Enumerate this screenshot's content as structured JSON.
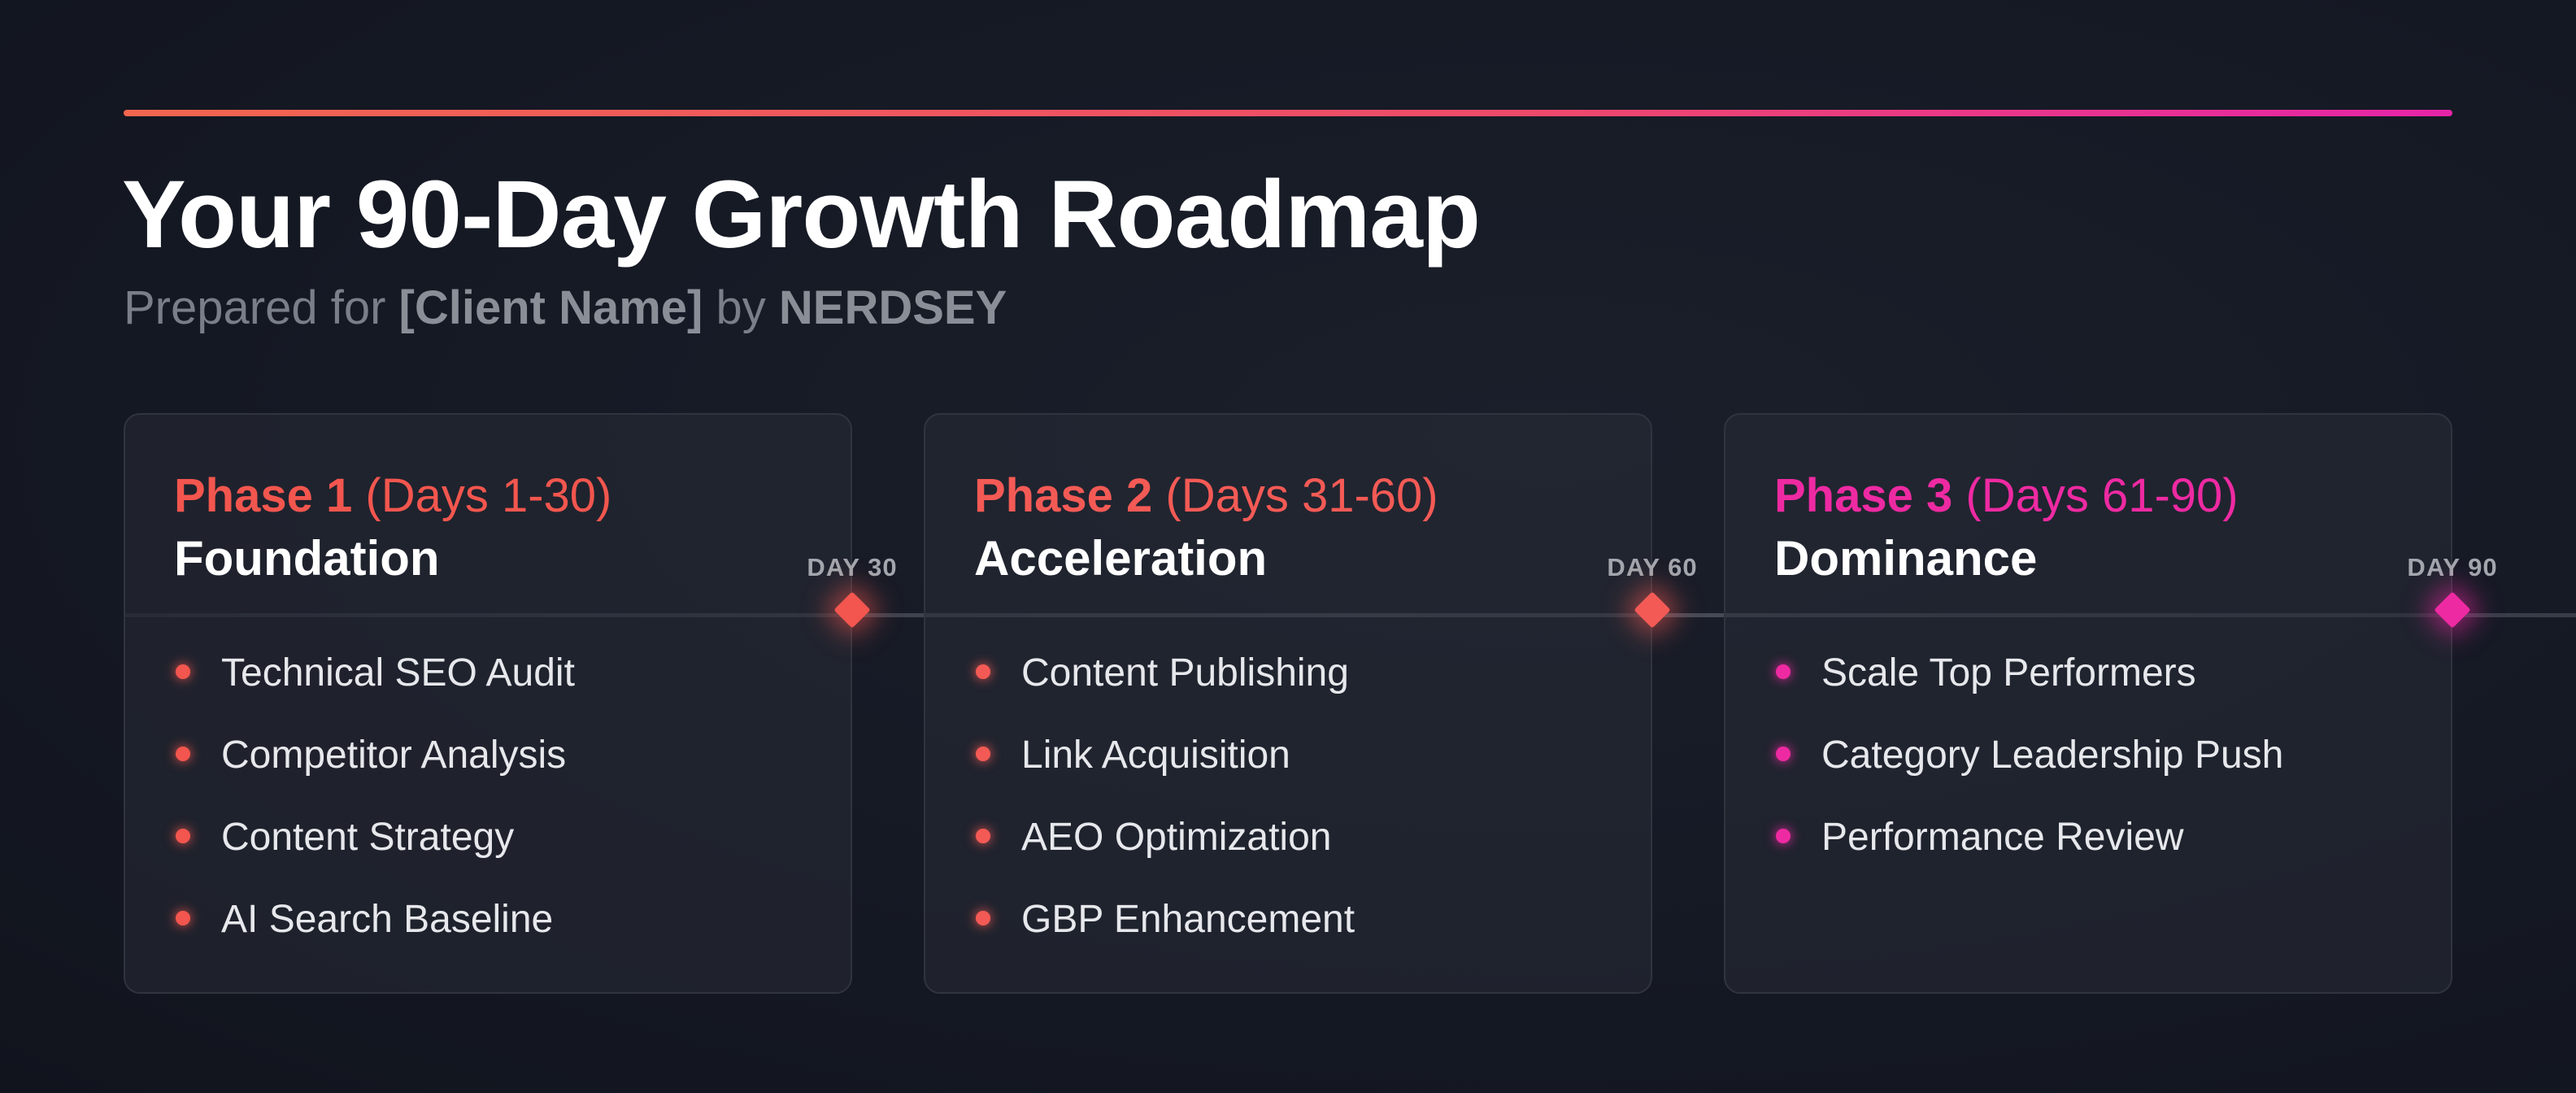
{
  "header": {
    "title": "Your 90-Day Growth Roadmap",
    "subtitle_prefix": "Prepared for",
    "client": "[Client Name]",
    "subtitle_mid": "by",
    "brand": "NERDSEY"
  },
  "colors": {
    "accent_start": "#f2664f",
    "accent_end": "#e524a8",
    "background": "#151924"
  },
  "phases": [
    {
      "label": "Phase 1",
      "range": "(Days 1-30)",
      "name": "Foundation",
      "color": "#f2564e",
      "milestone": "DAY 30",
      "items": [
        "Technical SEO Audit",
        "Competitor Analysis",
        "Content Strategy",
        "AI Search Baseline"
      ]
    },
    {
      "label": "Phase 2",
      "range": "(Days 31-60)",
      "name": "Acceleration",
      "color": "#f45a55",
      "milestone": "DAY 60",
      "items": [
        "Content Publishing",
        "Link Acquisition",
        "AEO Optimization",
        "GBP Enhancement"
      ]
    },
    {
      "label": "Phase 3",
      "range": "(Days 61-90)",
      "name": "Dominance",
      "color": "#ee2aa2",
      "milestone": "DAY 90",
      "items": [
        "Scale Top Performers",
        "Category Leadership Push",
        "Performance Review"
      ]
    }
  ]
}
